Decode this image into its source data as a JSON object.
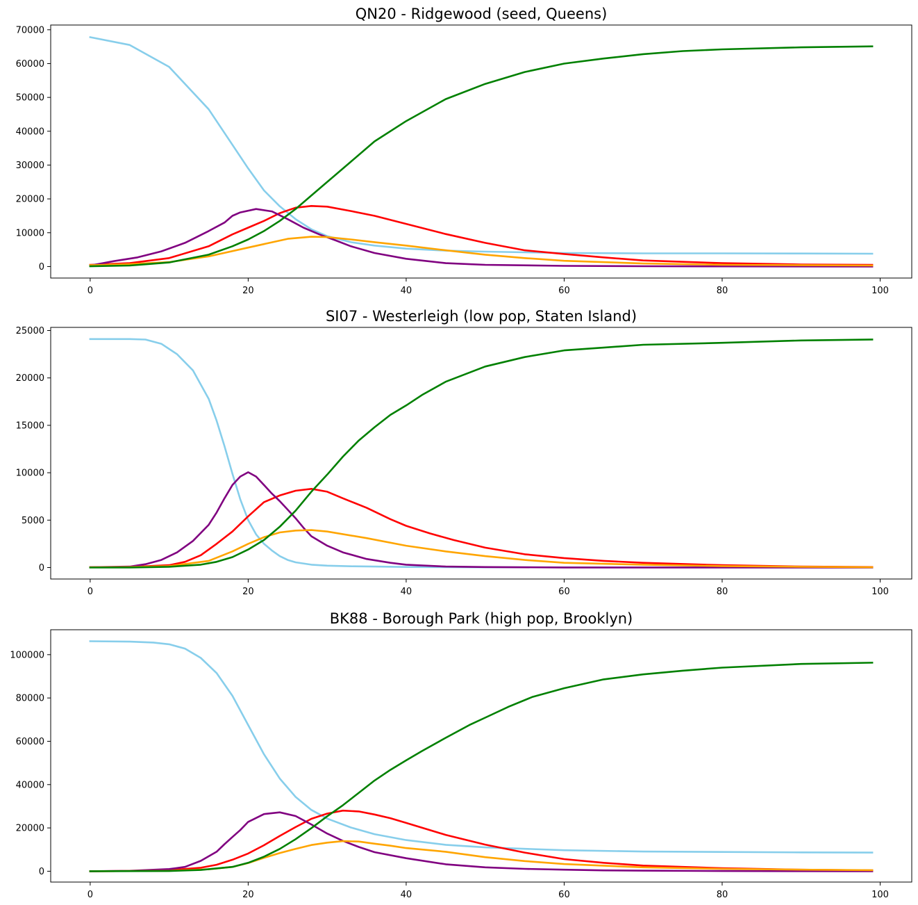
{
  "chart_data": [
    {
      "type": "line",
      "title": "QN20 - Ridgewood (seed, Queens)",
      "xlabel": "",
      "ylabel": "",
      "xlim": [
        -5,
        104
      ],
      "ylim": [
        -3400,
        71400
      ],
      "xticks": [
        0,
        20,
        40,
        60,
        80,
        100
      ],
      "yticks": [
        0,
        10000,
        20000,
        30000,
        40000,
        50000,
        60000,
        70000
      ],
      "grid": false,
      "series": [
        {
          "color": "#87ceeb",
          "x": [
            0,
            5,
            10,
            15,
            18,
            20,
            22,
            24,
            26,
            28,
            30,
            33,
            36,
            40,
            45,
            50,
            55,
            60,
            70,
            80,
            90,
            99
          ],
          "y": [
            67800,
            65500,
            59000,
            46500,
            36000,
            29000,
            22500,
            17800,
            14000,
            11000,
            9000,
            7200,
            6200,
            5300,
            4700,
            4400,
            4200,
            4000,
            3900,
            3900,
            3850,
            3800
          ]
        },
        {
          "color": "#ff0000",
          "x": [
            0,
            5,
            10,
            15,
            18,
            20,
            22,
            24,
            26,
            28,
            30,
            33,
            36,
            40,
            45,
            50,
            55,
            60,
            65,
            70,
            80,
            90,
            99
          ],
          "y": [
            500,
            1000,
            2500,
            6000,
            9500,
            11500,
            13500,
            15800,
            17400,
            17900,
            17700,
            16400,
            15000,
            12600,
            9600,
            7000,
            4800,
            3700,
            2700,
            1800,
            1000,
            600,
            500
          ]
        },
        {
          "color": "#800080",
          "x": [
            0,
            3,
            6,
            9,
            12,
            15,
            17,
            18,
            19,
            21,
            23,
            25,
            27,
            29,
            31,
            33,
            36,
            40,
            45,
            50,
            60,
            70,
            80,
            99
          ],
          "y": [
            300,
            1600,
            2700,
            4500,
            7000,
            10500,
            13000,
            15000,
            16000,
            17000,
            16300,
            14000,
            11500,
            9500,
            7800,
            6000,
            4000,
            2300,
            1000,
            500,
            200,
            100,
            50,
            0
          ]
        },
        {
          "color": "#ffa500",
          "x": [
            0,
            5,
            10,
            15,
            20,
            25,
            28,
            30,
            33,
            36,
            40,
            45,
            50,
            55,
            60,
            70,
            80,
            99
          ],
          "y": [
            400,
            700,
            1300,
            3000,
            5600,
            8200,
            8800,
            8700,
            8000,
            7200,
            6200,
            4800,
            3500,
            2500,
            1700,
            900,
            500,
            300
          ]
        },
        {
          "color": "#008000",
          "x": [
            0,
            5,
            10,
            15,
            18,
            20,
            22,
            24,
            26,
            28,
            30,
            33,
            36,
            40,
            45,
            50,
            55,
            60,
            65,
            70,
            75,
            80,
            90,
            99
          ],
          "y": [
            100,
            300,
            1200,
            3500,
            6000,
            8000,
            10500,
            13500,
            17000,
            21000,
            25000,
            31000,
            37000,
            43000,
            49500,
            54000,
            57500,
            60000,
            61500,
            62800,
            63700,
            64200,
            64800,
            65100
          ]
        }
      ]
    },
    {
      "type": "line",
      "title": "SI07 - Westerleigh (low pop, Staten Island)",
      "xlabel": "",
      "ylabel": "",
      "xlim": [
        -5,
        104
      ],
      "ylim": [
        -1210,
        25330
      ],
      "xticks": [
        0,
        20,
        40,
        60,
        80,
        100
      ],
      "yticks": [
        0,
        5000,
        10000,
        15000,
        20000,
        25000
      ],
      "grid": false,
      "series": [
        {
          "color": "#87ceeb",
          "x": [
            0,
            5,
            7,
            9,
            11,
            13,
            15,
            16,
            17,
            18,
            19,
            20,
            21,
            22,
            23,
            24,
            25,
            26,
            28,
            30,
            33,
            36,
            40,
            50,
            99
          ],
          "y": [
            24100,
            24100,
            24050,
            23600,
            22500,
            20800,
            17800,
            15500,
            12800,
            9900,
            7200,
            5000,
            3500,
            2500,
            1800,
            1200,
            800,
            550,
            300,
            200,
            130,
            100,
            60,
            20,
            0
          ]
        },
        {
          "color": "#ff0000",
          "x": [
            0,
            5,
            10,
            12,
            14,
            16,
            18,
            20,
            22,
            24,
            26,
            28,
            30,
            32,
            35,
            38,
            40,
            43,
            46,
            50,
            55,
            60,
            65,
            70,
            80,
            90,
            99
          ],
          "y": [
            30,
            60,
            250,
            600,
            1300,
            2500,
            3800,
            5400,
            6900,
            7600,
            8100,
            8300,
            8000,
            7300,
            6300,
            5100,
            4400,
            3600,
            2900,
            2100,
            1400,
            1000,
            700,
            500,
            250,
            100,
            50
          ]
        },
        {
          "color": "#800080",
          "x": [
            0,
            5,
            7,
            9,
            11,
            13,
            15,
            16,
            17,
            18,
            19,
            20,
            21,
            22,
            23,
            24,
            25,
            26,
            27,
            28,
            30,
            32,
            35,
            38,
            40,
            45,
            50,
            60,
            99
          ],
          "y": [
            30,
            100,
            350,
            800,
            1600,
            2800,
            4500,
            5800,
            7300,
            8700,
            9600,
            10050,
            9600,
            8700,
            7800,
            7000,
            6100,
            5200,
            4200,
            3300,
            2300,
            1600,
            900,
            500,
            300,
            100,
            50,
            10,
            0
          ]
        },
        {
          "color": "#ffa500",
          "x": [
            0,
            5,
            10,
            15,
            18,
            20,
            22,
            24,
            26,
            28,
            30,
            35,
            40,
            45,
            50,
            55,
            60,
            70,
            80,
            90,
            99
          ],
          "y": [
            20,
            50,
            150,
            700,
            1700,
            2500,
            3200,
            3700,
            3900,
            3950,
            3800,
            3100,
            2300,
            1700,
            1200,
            800,
            500,
            300,
            150,
            80,
            30
          ]
        },
        {
          "color": "#008000",
          "x": [
            0,
            5,
            10,
            14,
            16,
            18,
            20,
            22,
            24,
            26,
            28,
            30,
            32,
            34,
            36,
            38,
            40,
            42,
            45,
            50,
            55,
            60,
            65,
            70,
            80,
            90,
            99
          ],
          "y": [
            0,
            10,
            80,
            300,
            600,
            1100,
            1900,
            2900,
            4300,
            6000,
            8000,
            9800,
            11700,
            13400,
            14800,
            16100,
            17100,
            18200,
            19600,
            21200,
            22200,
            22900,
            23200,
            23500,
            23700,
            23950,
            24050
          ]
        }
      ]
    },
    {
      "type": "line",
      "title": "BK88 - Borough Park (high pop, Brooklyn)",
      "xlabel": "",
      "ylabel": "",
      "xlim": [
        -5,
        104
      ],
      "ylim": [
        -5000,
        111500
      ],
      "xticks": [
        0,
        20,
        40,
        60,
        80,
        100
      ],
      "yticks": [
        0,
        20000,
        40000,
        60000,
        80000,
        100000
      ],
      "grid": false,
      "series": [
        {
          "color": "#87ceeb",
          "x": [
            0,
            5,
            8,
            10,
            12,
            14,
            16,
            18,
            20,
            22,
            24,
            26,
            28,
            30,
            33,
            36,
            40,
            45,
            50,
            60,
            70,
            80,
            90,
            99
          ],
          "y": [
            106200,
            106000,
            105600,
            104800,
            102800,
            98500,
            91500,
            81000,
            67500,
            54000,
            42800,
            34300,
            28300,
            24300,
            20200,
            17100,
            14400,
            12200,
            11000,
            9700,
            9100,
            8900,
            8700,
            8600
          ]
        },
        {
          "color": "#ff0000",
          "x": [
            0,
            5,
            10,
            14,
            16,
            18,
            20,
            22,
            24,
            26,
            28,
            30,
            32,
            34,
            36,
            38,
            40,
            45,
            50,
            55,
            60,
            65,
            70,
            80,
            90,
            99
          ],
          "y": [
            0,
            100,
            500,
            1600,
            3000,
            5300,
            8200,
            12000,
            16300,
            20400,
            24200,
            26600,
            28000,
            27600,
            26200,
            24500,
            22300,
            16800,
            12300,
            8600,
            5600,
            3900,
            2600,
            1400,
            700,
            400
          ]
        },
        {
          "color": "#800080",
          "x": [
            0,
            5,
            10,
            12,
            14,
            16,
            17,
            18,
            19,
            20,
            22,
            24,
            26,
            28,
            30,
            32,
            34,
            36,
            40,
            45,
            50,
            55,
            60,
            65,
            70,
            80,
            90,
            99
          ],
          "y": [
            0,
            200,
            1000,
            2000,
            4800,
            9000,
            12500,
            15800,
            19000,
            22800,
            26400,
            27200,
            25500,
            21600,
            17400,
            14000,
            11200,
            8800,
            6000,
            3200,
            1800,
            1100,
            700,
            400,
            250,
            100,
            50,
            0
          ]
        },
        {
          "color": "#ffa500",
          "x": [
            0,
            10,
            15,
            18,
            20,
            22,
            24,
            26,
            28,
            30,
            32,
            34,
            36,
            38,
            40,
            45,
            50,
            55,
            60,
            70,
            80,
            90,
            99
          ],
          "y": [
            0,
            200,
            900,
            2000,
            3800,
            6200,
            8400,
            10300,
            12100,
            13200,
            13900,
            13700,
            12700,
            11800,
            10700,
            9000,
            6500,
            4700,
            3300,
            1800,
            1100,
            700,
            500
          ]
        },
        {
          "color": "#008000",
          "x": [
            0,
            10,
            14,
            18,
            20,
            22,
            24,
            26,
            28,
            30,
            32,
            34,
            36,
            38,
            40,
            42,
            45,
            48,
            50,
            53,
            56,
            60,
            65,
            70,
            75,
            80,
            90,
            99
          ],
          "y": [
            0,
            100,
            600,
            2000,
            3900,
            6700,
            10300,
            14800,
            19900,
            25400,
            30500,
            36200,
            41900,
            46800,
            51200,
            55500,
            61600,
            67500,
            70900,
            76000,
            80500,
            84500,
            88600,
            90900,
            92600,
            94000,
            95700,
            96300
          ]
        }
      ]
    }
  ]
}
